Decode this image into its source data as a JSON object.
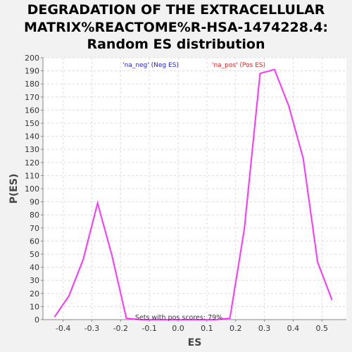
{
  "chart_data": {
    "type": "line",
    "title_lines": [
      "DEGRADATION OF THE EXTRACELLULAR",
      "MATRIX%REACTOME%R-HSA-1474228.4:",
      "Random ES distribution"
    ],
    "xlabel": "ES",
    "ylabel": "P(ES)",
    "xlim": [
      -0.47,
      0.585
    ],
    "ylim": [
      0,
      200
    ],
    "x_ticks": [
      -0.4,
      -0.3,
      -0.2,
      -0.1,
      0.0,
      0.1,
      0.2,
      0.3,
      0.4,
      0.5
    ],
    "x_tick_labels": [
      "-0.4",
      "-0.3",
      "-0.2",
      "-0.1",
      "0.0",
      "0.1",
      "0.2",
      "0.3",
      "0.4",
      "0.5"
    ],
    "y_ticks": [
      0,
      10,
      20,
      30,
      40,
      50,
      60,
      70,
      80,
      90,
      100,
      110,
      120,
      130,
      140,
      150,
      160,
      170,
      180,
      190,
      200
    ],
    "grid": true,
    "legend": [
      {
        "label": "'na_neg' (Neg ES)",
        "color": "#2222ee"
      },
      {
        "label": "'na_pos' (Pos ES)",
        "color": "#ee2222"
      }
    ],
    "series": [
      {
        "color": "#ff33ff",
        "x": [
          -0.43,
          -0.38,
          -0.33,
          -0.28,
          -0.23,
          -0.18,
          -0.13,
          -0.08,
          -0.03,
          0.03,
          0.08,
          0.13,
          0.18,
          0.23,
          0.285,
          0.335,
          0.385,
          0.435,
          0.485,
          0.535
        ],
        "y": [
          2,
          18,
          46,
          89,
          49,
          1,
          0,
          0,
          0,
          0,
          0,
          0,
          1,
          69,
          188,
          191,
          163,
          123,
          44,
          15
        ]
      }
    ],
    "annotation": "Sets with pos scores: 79%"
  }
}
